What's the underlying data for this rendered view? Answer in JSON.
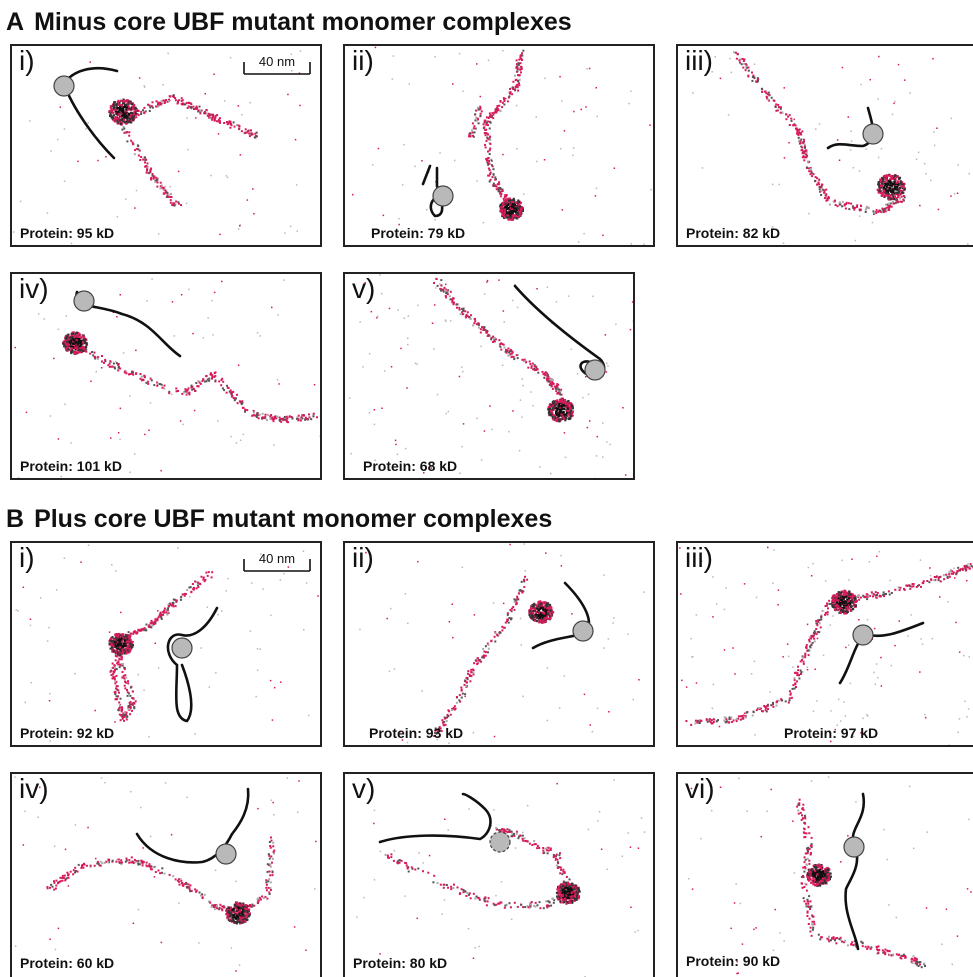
{
  "sections": [
    {
      "letter": "A",
      "title": "Minus core UBF mutant monomer complexes",
      "panels": [
        {
          "numeral": "i)",
          "protein": "Protein: 95 kD"
        },
        {
          "numeral": "ii)",
          "protein": "Protein: 79 kD"
        },
        {
          "numeral": "iii)",
          "protein": "Protein: 82 kD"
        },
        {
          "numeral": "iv)",
          "protein": "Protein: 101 kD"
        },
        {
          "numeral": "v)",
          "protein": "Protein: 68 kD"
        }
      ],
      "scale_label": "40 nm"
    },
    {
      "letter": "B",
      "title": "Plus core UBF mutant monomer complexes",
      "panels": [
        {
          "numeral": "i)",
          "protein": "Protein: 92 kD"
        },
        {
          "numeral": "ii)",
          "protein": "Protein: 93 kD"
        },
        {
          "numeral": "iii)",
          "protein": "Protein: 97 kD"
        },
        {
          "numeral": "iv)",
          "protein": "Protein: 60 kD"
        },
        {
          "numeral": "v)",
          "protein": "Protein: 80 kD"
        },
        {
          "numeral": "vi)",
          "protein": "Protein: 90 kD"
        }
      ],
      "scale_label": "40 nm"
    }
  ],
  "colors": {
    "dna_strand": "#d81b5a",
    "protein_core": "#111111",
    "protein_sphere": "#b9b9b9",
    "sketch_line": "#111111",
    "panel_border": "#222222"
  }
}
